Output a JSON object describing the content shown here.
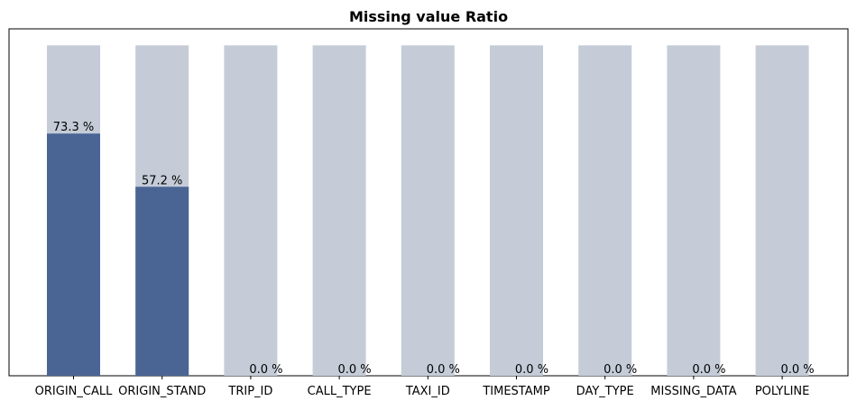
{
  "chart_data": {
    "type": "bar",
    "title": "Missing value Ratio",
    "xlabel": "",
    "ylabel": "",
    "categories": [
      "ORIGIN_CALL",
      "ORIGIN_STAND",
      "TRIP_ID",
      "CALL_TYPE",
      "TAXI_ID",
      "TIMESTAMP",
      "DAY_TYPE",
      "MISSING_DATA",
      "POLYLINE"
    ],
    "series": [
      {
        "values": [
          73.3,
          57.2,
          0.0,
          0.0,
          0.0,
          0.0,
          0.0,
          0.0,
          0.0
        ]
      }
    ],
    "background_values": [
      100,
      100,
      100,
      100,
      100,
      100,
      100,
      100,
      100
    ],
    "data_labels": [
      "73.3 %",
      "57.2 %",
      "0.0 %",
      "0.0 %",
      "0.0 %",
      "0.0 %",
      "0.0 %",
      "0.0 %",
      "0.0 %"
    ],
    "ylim": [
      0,
      105
    ],
    "y_axis_visible": false,
    "grid": false,
    "legend": "none",
    "colors": {
      "value_bar": "#4a6594",
      "background_bar": "#c5ccd8",
      "text": "#000000",
      "axis": "#000000"
    }
  }
}
